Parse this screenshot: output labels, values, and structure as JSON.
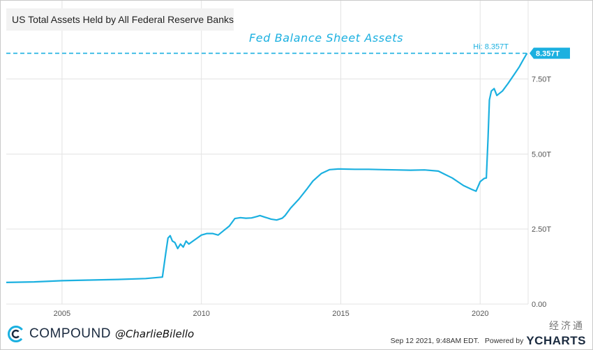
{
  "legend": {
    "series_label": "US Total Assets Held by All Federal Reserve Banks"
  },
  "annotation": {
    "title": "Fed Balance Sheet Assets"
  },
  "high_marker": {
    "label": "Hi: 8.357T",
    "badge": "8.357T"
  },
  "footer": {
    "brand": "COMPOUND",
    "handle": "@CharlieBilello",
    "timestamp": "Sep 12 2021, 9:48AM EDT.",
    "powered_by": "Powered by",
    "provider": "YCHARTS",
    "watermark": "经济通"
  },
  "colors": {
    "line": "#1bb0e0",
    "badge_bg": "#1bb0e0",
    "grid": "#e3e3e3",
    "axis_text": "#555555"
  },
  "icons": {
    "brand_logo": "compound-c-icon",
    "badge_arrow": "left-pointer-icon"
  },
  "chart_data": {
    "type": "line",
    "xlabel": "",
    "ylabel": "",
    "xlim": [
      2003.0,
      2021.72
    ],
    "ylim": [
      0,
      9.9
    ],
    "x_ticks": [
      2005,
      2010,
      2015,
      2020
    ],
    "x_tick_labels": [
      "2005",
      "2010",
      "2015",
      "2020"
    ],
    "y_ticks": [
      0,
      2.5,
      5.0,
      7.5
    ],
    "y_tick_labels": [
      "0.00",
      "2.50T",
      "5.00T",
      "7.50T"
    ],
    "grid": true,
    "high_line_value": 8.357,
    "series": [
      {
        "x": [
          2003.0,
          2004.0,
          2005.0,
          2006.0,
          2007.0,
          2008.0,
          2008.6,
          2008.72,
          2008.8,
          2008.88,
          2008.96,
          2009.05,
          2009.15,
          2009.25,
          2009.35,
          2009.45,
          2009.55,
          2009.7,
          2009.85,
          2010.0,
          2010.2,
          2010.4,
          2010.6,
          2010.8,
          2011.0,
          2011.2,
          2011.4,
          2011.6,
          2011.8,
          2012.0,
          2012.1,
          2012.3,
          2012.5,
          2012.7,
          2012.9,
          2013.0,
          2013.2,
          2013.5,
          2013.8,
          2014.0,
          2014.3,
          2014.6,
          2014.9,
          2015.0,
          2015.5,
          2016.0,
          2016.5,
          2017.0,
          2017.5,
          2018.0,
          2018.5,
          2019.0,
          2019.4,
          2019.7,
          2019.85,
          2020.0,
          2020.15,
          2020.22,
          2020.28,
          2020.33,
          2020.4,
          2020.5,
          2020.6,
          2020.8,
          2021.0,
          2021.2,
          2021.4,
          2021.55,
          2021.68
        ],
        "y": [
          0.72,
          0.74,
          0.78,
          0.8,
          0.82,
          0.85,
          0.9,
          1.7,
          2.2,
          2.28,
          2.1,
          2.05,
          1.85,
          2.0,
          1.9,
          2.1,
          2.0,
          2.1,
          2.2,
          2.3,
          2.35,
          2.35,
          2.3,
          2.45,
          2.6,
          2.85,
          2.88,
          2.86,
          2.87,
          2.92,
          2.95,
          2.89,
          2.83,
          2.8,
          2.86,
          2.95,
          3.2,
          3.5,
          3.85,
          4.1,
          4.35,
          4.48,
          4.5,
          4.5,
          4.49,
          4.49,
          4.48,
          4.47,
          4.46,
          4.47,
          4.43,
          4.2,
          3.95,
          3.82,
          3.76,
          4.08,
          4.19,
          4.2,
          5.5,
          6.8,
          7.1,
          7.18,
          6.95,
          7.1,
          7.35,
          7.62,
          7.9,
          8.15,
          8.357
        ]
      }
    ]
  }
}
